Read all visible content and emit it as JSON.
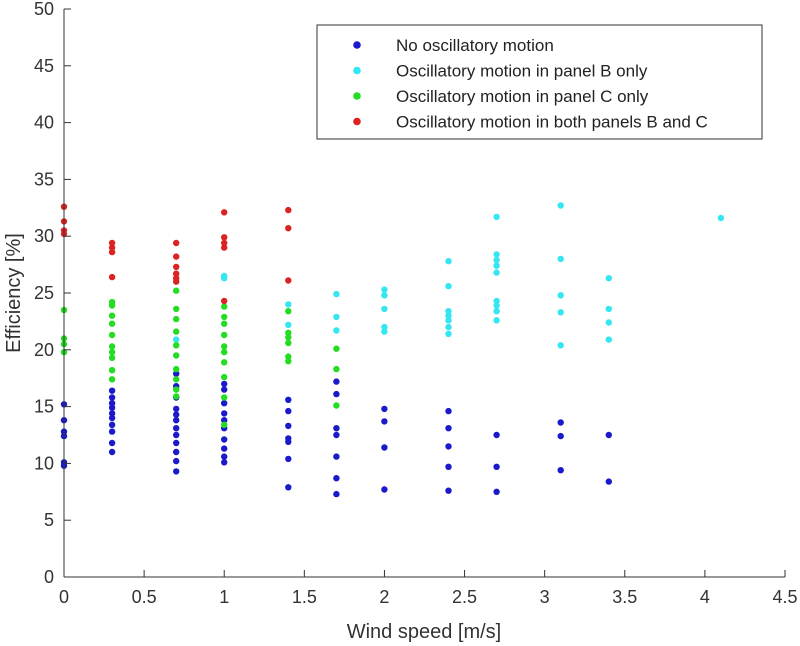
{
  "chart_data": {
    "type": "scatter",
    "xlabel": "Wind speed [m/s]",
    "ylabel": "Efficiency [%]",
    "xlim": [
      0,
      4.5
    ],
    "ylim": [
      0,
      50
    ],
    "xticks": [
      "0",
      "0.5",
      "1",
      "1.5",
      "2",
      "2.5",
      "3",
      "3.5",
      "4",
      "4.5"
    ],
    "yticks": [
      "0",
      "5",
      "10",
      "15",
      "20",
      "25",
      "30",
      "35",
      "40",
      "45",
      "50"
    ],
    "grid": false,
    "legend_position": "top-right",
    "series": [
      {
        "name": "No oscillatory motion",
        "color": "#1a1acc",
        "points": [
          [
            0,
            9.8
          ],
          [
            0,
            10.1
          ],
          [
            0,
            12.4
          ],
          [
            0,
            12.8
          ],
          [
            0,
            13.8
          ],
          [
            0,
            15.2
          ],
          [
            0.3,
            11.0
          ],
          [
            0.3,
            11.8
          ],
          [
            0.3,
            12.8
          ],
          [
            0.3,
            13.4
          ],
          [
            0.3,
            14.0
          ],
          [
            0.3,
            14.4
          ],
          [
            0.3,
            14.9
          ],
          [
            0.3,
            15.3
          ],
          [
            0.3,
            15.8
          ],
          [
            0.3,
            16.4
          ],
          [
            0.7,
            9.3
          ],
          [
            0.7,
            10.2
          ],
          [
            0.7,
            11.0
          ],
          [
            0.7,
            11.8
          ],
          [
            0.7,
            12.5
          ],
          [
            0.7,
            13.1
          ],
          [
            0.7,
            13.8
          ],
          [
            0.7,
            14.3
          ],
          [
            0.7,
            14.8
          ],
          [
            0.7,
            15.8
          ],
          [
            0.7,
            16.8
          ],
          [
            0.7,
            17.9
          ],
          [
            1.0,
            10.1
          ],
          [
            1.0,
            10.6
          ],
          [
            1.0,
            11.3
          ],
          [
            1.0,
            12.1
          ],
          [
            1.0,
            13.1
          ],
          [
            1.0,
            13.8
          ],
          [
            1.0,
            14.4
          ],
          [
            1.0,
            15.3
          ],
          [
            1.0,
            16.5
          ],
          [
            1.0,
            17.0
          ],
          [
            1.4,
            7.9
          ],
          [
            1.4,
            10.4
          ],
          [
            1.4,
            11.9
          ],
          [
            1.4,
            12.2
          ],
          [
            1.4,
            13.3
          ],
          [
            1.4,
            14.6
          ],
          [
            1.4,
            15.6
          ],
          [
            1.7,
            7.3
          ],
          [
            1.7,
            8.7
          ],
          [
            1.7,
            10.6
          ],
          [
            1.7,
            12.5
          ],
          [
            1.7,
            13.1
          ],
          [
            1.7,
            16.1
          ],
          [
            1.7,
            17.2
          ],
          [
            2.0,
            7.7
          ],
          [
            2.0,
            11.4
          ],
          [
            2.0,
            13.7
          ],
          [
            2.0,
            14.8
          ],
          [
            2.4,
            7.6
          ],
          [
            2.4,
            9.7
          ],
          [
            2.4,
            11.5
          ],
          [
            2.4,
            13.1
          ],
          [
            2.4,
            14.6
          ],
          [
            2.7,
            7.5
          ],
          [
            2.7,
            9.7
          ],
          [
            2.7,
            12.5
          ],
          [
            3.1,
            9.4
          ],
          [
            3.1,
            12.4
          ],
          [
            3.1,
            13.6
          ],
          [
            3.4,
            8.4
          ],
          [
            3.4,
            12.5
          ]
        ]
      },
      {
        "name": "Oscillatory motion in panel B only",
        "color": "#33e6f2",
        "points": [
          [
            0.7,
            20.9
          ],
          [
            1.0,
            26.3
          ],
          [
            1.0,
            26.5
          ],
          [
            1.4,
            22.2
          ],
          [
            1.4,
            24.0
          ],
          [
            1.7,
            21.7
          ],
          [
            1.7,
            22.9
          ],
          [
            1.7,
            24.9
          ],
          [
            2.0,
            21.6
          ],
          [
            2.0,
            22.0
          ],
          [
            2.0,
            23.6
          ],
          [
            2.0,
            24.8
          ],
          [
            2.0,
            25.3
          ],
          [
            2.4,
            21.4
          ],
          [
            2.4,
            22.0
          ],
          [
            2.4,
            22.6
          ],
          [
            2.4,
            23.0
          ],
          [
            2.4,
            23.4
          ],
          [
            2.4,
            25.6
          ],
          [
            2.4,
            27.8
          ],
          [
            2.7,
            22.6
          ],
          [
            2.7,
            23.4
          ],
          [
            2.7,
            23.9
          ],
          [
            2.7,
            24.3
          ],
          [
            2.7,
            26.8
          ],
          [
            2.7,
            27.4
          ],
          [
            2.7,
            27.9
          ],
          [
            2.7,
            28.4
          ],
          [
            2.7,
            31.7
          ],
          [
            3.1,
            20.4
          ],
          [
            3.1,
            23.3
          ],
          [
            3.1,
            24.8
          ],
          [
            3.1,
            28.0
          ],
          [
            3.1,
            32.7
          ],
          [
            3.4,
            20.9
          ],
          [
            3.4,
            22.4
          ],
          [
            3.4,
            23.6
          ],
          [
            3.4,
            26.3
          ],
          [
            4.1,
            31.6
          ]
        ]
      },
      {
        "name": "Oscillatory motion in panel C only",
        "color": "#22dd22",
        "points": [
          [
            0,
            19.8
          ],
          [
            0,
            20.5
          ],
          [
            0,
            21.0
          ],
          [
            0,
            23.5
          ],
          [
            0.3,
            17.4
          ],
          [
            0.3,
            18.2
          ],
          [
            0.3,
            19.3
          ],
          [
            0.3,
            19.8
          ],
          [
            0.3,
            20.3
          ],
          [
            0.3,
            21.3
          ],
          [
            0.3,
            22.3
          ],
          [
            0.3,
            23.0
          ],
          [
            0.3,
            23.9
          ],
          [
            0.3,
            24.2
          ],
          [
            0.7,
            15.9
          ],
          [
            0.7,
            16.5
          ],
          [
            0.7,
            17.4
          ],
          [
            0.7,
            18.3
          ],
          [
            0.7,
            19.5
          ],
          [
            0.7,
            20.4
          ],
          [
            0.7,
            21.6
          ],
          [
            0.7,
            22.7
          ],
          [
            0.7,
            23.6
          ],
          [
            0.7,
            25.2
          ],
          [
            1.0,
            13.4
          ],
          [
            1.0,
            15.8
          ],
          [
            1.0,
            17.6
          ],
          [
            1.0,
            18.9
          ],
          [
            1.0,
            19.8
          ],
          [
            1.0,
            20.3
          ],
          [
            1.0,
            21.3
          ],
          [
            1.0,
            22.3
          ],
          [
            1.0,
            22.9
          ],
          [
            1.0,
            23.8
          ],
          [
            1.4,
            19.0
          ],
          [
            1.4,
            19.4
          ],
          [
            1.4,
            20.6
          ],
          [
            1.4,
            21.1
          ],
          [
            1.4,
            21.5
          ],
          [
            1.4,
            23.4
          ],
          [
            1.7,
            15.1
          ],
          [
            1.7,
            18.3
          ],
          [
            1.7,
            20.1
          ]
        ]
      },
      {
        "name": "Oscillatory motion in both panels B and C",
        "color": "#dd2222",
        "points": [
          [
            0,
            30.2
          ],
          [
            0,
            30.5
          ],
          [
            0,
            31.3
          ],
          [
            0,
            32.6
          ],
          [
            0.3,
            26.4
          ],
          [
            0.3,
            28.6
          ],
          [
            0.3,
            29.0
          ],
          [
            0.3,
            29.4
          ],
          [
            0.7,
            26.0
          ],
          [
            0.7,
            26.3
          ],
          [
            0.7,
            26.7
          ],
          [
            0.7,
            27.3
          ],
          [
            0.7,
            28.2
          ],
          [
            0.7,
            29.4
          ],
          [
            1.0,
            24.3
          ],
          [
            1.0,
            29.0
          ],
          [
            1.0,
            29.4
          ],
          [
            1.0,
            29.9
          ],
          [
            1.0,
            32.1
          ],
          [
            1.4,
            26.1
          ],
          [
            1.4,
            30.7
          ],
          [
            1.4,
            32.3
          ]
        ]
      }
    ]
  }
}
